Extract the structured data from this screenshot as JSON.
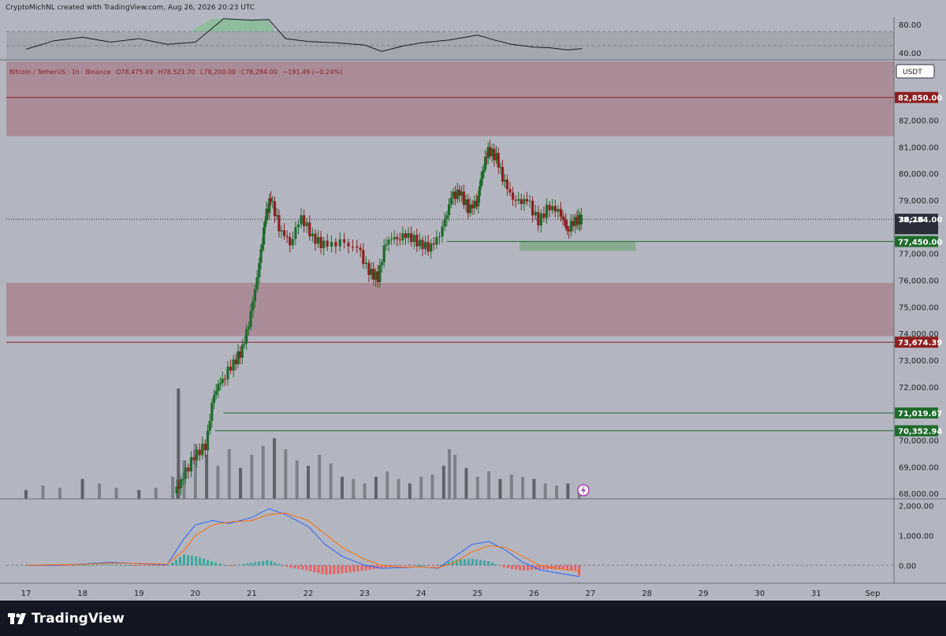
{
  "header": {
    "creator": "CryptoMichNL created with TradingView.com, Aug 26, 2026 20:23 UTC"
  },
  "legend": {
    "symbol": "Bitcoin / TetherUS · 1h · Binance",
    "open": "O78,475.49",
    "high": "H78,521.70",
    "low": "L78,200.00",
    "close": "C78,284.00",
    "change": "−191.49 (−0.24%)"
  },
  "currency_button": "USDT",
  "countdown": "36:16",
  "footer": {
    "brand": "TradingView"
  },
  "colors": {
    "background": "#b3b6c0",
    "up": "#1e6b2a",
    "down": "#8e1f1f",
    "resistance_zone": "#a88590",
    "support_zone": "#7fa88a",
    "macd": "#2962ff",
    "signal": "#ff6d00"
  },
  "chart_data": [
    {
      "type": "line",
      "name": "rsi",
      "ylim": [
        30,
        90
      ],
      "ticks": [
        "80.00",
        "40.00"
      ],
      "ticks_values": [
        80,
        40
      ],
      "bands": [
        70,
        50,
        30
      ],
      "x": [
        "17",
        "17.5",
        "18",
        "18.5",
        "19",
        "19.5",
        "20",
        "20.5",
        "21",
        "21.3",
        "21.6",
        "22",
        "22.5",
        "23",
        "23.3",
        "23.7",
        "24",
        "24.5",
        "25",
        "25.3",
        "25.6",
        "26",
        "26.3",
        "26.6",
        "26.85"
      ],
      "values": [
        45,
        57,
        62,
        55,
        60,
        52,
        55,
        88,
        86,
        87,
        60,
        56,
        54,
        51,
        42,
        50,
        54,
        58,
        65,
        58,
        52,
        48,
        47,
        44,
        46
      ]
    },
    {
      "type": "line",
      "name": "price",
      "ylim": [
        67800,
        84200
      ],
      "yticks": [
        "82,000.00",
        "81,000.00",
        "80,000.00",
        "79,000.00",
        "78,000.00",
        "77,000.00",
        "76,000.00",
        "75,000.00",
        "74,000.00",
        "73,000.00",
        "72,000.00",
        "71,000.00",
        "70,000.00",
        "69,000.00",
        "68,000.00"
      ],
      "yticks_values": [
        82000,
        81000,
        80000,
        79000,
        78000,
        77000,
        76000,
        75000,
        74000,
        73000,
        72000,
        71000,
        70000,
        69000,
        68000
      ],
      "xticks": [
        "17",
        "18",
        "19",
        "20",
        "21",
        "22",
        "23",
        "24",
        "25",
        "26",
        "27",
        "28",
        "29",
        "30",
        "31",
        "Sep"
      ],
      "xticks_values": [
        17,
        18,
        19,
        20,
        21,
        22,
        23,
        24,
        25,
        26,
        27,
        28,
        29,
        30,
        31,
        32
      ],
      "x": [
        19.65,
        19.8,
        20.0,
        20.2,
        20.35,
        20.5,
        20.7,
        20.85,
        21.0,
        21.15,
        21.25,
        21.35,
        21.5,
        21.7,
        21.9,
        22.1,
        22.3,
        22.6,
        22.9,
        23.1,
        23.25,
        23.4,
        23.6,
        23.8,
        24.0,
        24.2,
        24.4,
        24.55,
        24.7,
        24.85,
        25.0,
        25.1,
        25.2,
        25.35,
        25.5,
        25.7,
        25.9,
        26.1,
        26.3,
        26.5,
        26.6,
        26.75,
        26.85
      ],
      "values": [
        68000,
        68600,
        69400,
        69800,
        71800,
        72300,
        72900,
        73400,
        74700,
        76600,
        78300,
        79100,
        78000,
        77400,
        78400,
        77600,
        77300,
        77400,
        77200,
        76300,
        76100,
        77500,
        77600,
        77700,
        77350,
        77200,
        77900,
        79100,
        79300,
        78700,
        78900,
        80100,
        80900,
        80600,
        79600,
        78900,
        79000,
        78200,
        78800,
        78500,
        77900,
        78250,
        78284
      ],
      "levels": [
        {
          "value": 82850,
          "label": "82,850.00",
          "color": "#8e1f1f"
        },
        {
          "value": 78284,
          "label": "78,284.00",
          "color": "#2a2e39"
        },
        {
          "value": 77450,
          "label": "77,450.00",
          "color": "#1e6b2a"
        },
        {
          "value": 73674.39,
          "label": "73,674.39",
          "color": "#8e1f1f"
        },
        {
          "value": 71019.67,
          "label": "71,019.67",
          "color": "#1e6b2a"
        },
        {
          "value": 70352.94,
          "label": "70,352.94",
          "color": "#1e6b2a"
        }
      ],
      "zones": [
        {
          "from": 81400,
          "to": 84200,
          "kind": "resistance"
        },
        {
          "from": 73900,
          "to": 75900,
          "kind": "resistance"
        },
        {
          "from": 77100,
          "to": 77450,
          "x_from": 25.75,
          "x_to": 27.8,
          "kind": "support"
        }
      ],
      "volume": {
        "x": [
          17.0,
          17.3,
          17.6,
          18.0,
          18.3,
          18.6,
          19.0,
          19.3,
          19.6,
          19.7,
          19.8,
          20.0,
          20.2,
          20.4,
          20.6,
          20.8,
          21.0,
          21.2,
          21.4,
          21.6,
          21.8,
          22.0,
          22.2,
          22.4,
          22.6,
          22.8,
          23.0,
          23.2,
          23.4,
          23.6,
          23.8,
          24.0,
          24.2,
          24.4,
          24.5,
          24.6,
          24.8,
          25.0,
          25.2,
          25.4,
          25.6,
          25.8,
          26.0,
          26.2,
          26.4,
          26.6,
          26.8
        ],
        "values": [
          8,
          12,
          10,
          18,
          14,
          10,
          8,
          10,
          20,
          100,
          35,
          50,
          40,
          30,
          45,
          28,
          40,
          48,
          55,
          45,
          35,
          30,
          40,
          32,
          20,
          18,
          14,
          20,
          25,
          18,
          14,
          20,
          22,
          30,
          45,
          40,
          28,
          20,
          25,
          18,
          22,
          20,
          18,
          14,
          12,
          14,
          10
        ]
      }
    },
    {
      "type": "line",
      "name": "macd",
      "ylim": [
        -600,
        2200
      ],
      "ticks": [
        "2,000.00",
        "1,000.00",
        "0.00"
      ],
      "ticks_values": [
        2000,
        1000,
        0
      ],
      "x": [
        17,
        17.5,
        18,
        18.5,
        19,
        19.5,
        19.8,
        20.0,
        20.3,
        20.6,
        21.0,
        21.3,
        21.6,
        22.0,
        22.3,
        22.6,
        23.0,
        23.3,
        23.6,
        24.0,
        24.3,
        24.6,
        24.9,
        25.2,
        25.5,
        25.8,
        26.1,
        26.4,
        26.8
      ],
      "values": [
        0,
        0,
        40,
        100,
        50,
        20,
        900,
        1350,
        1500,
        1400,
        1600,
        1900,
        1700,
        1300,
        700,
        300,
        0,
        -100,
        -80,
        -50,
        -100,
        300,
        700,
        800,
        500,
        100,
        -150,
        -250,
        -380
      ],
      "signal": [
        0,
        20,
        30,
        70,
        60,
        40,
        500,
        1000,
        1350,
        1450,
        1500,
        1700,
        1750,
        1500,
        1050,
        600,
        200,
        0,
        -60,
        -60,
        -80,
        100,
        450,
        650,
        600,
        300,
        0,
        -100,
        -200
      ]
    }
  ]
}
